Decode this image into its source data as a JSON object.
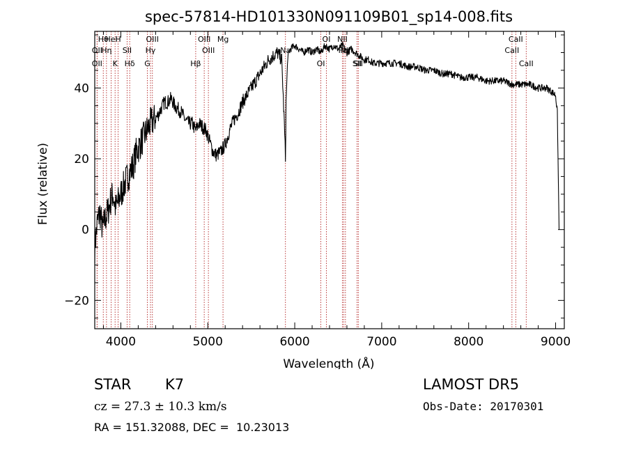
{
  "chart_data": {
    "type": "line",
    "title": "spec-57814-HD101330N091109B01_sp14-008.fits",
    "xlabel": "Wavelength (Å)",
    "ylabel": "Flux (relative)",
    "xlim": [
      3700,
      9100
    ],
    "ylim": [
      -28,
      56
    ],
    "x_ticks": [
      4000,
      5000,
      6000,
      7000,
      8000,
      9000
    ],
    "y_ticks": [
      -20,
      0,
      20,
      40
    ],
    "grid": false,
    "series": [
      {
        "x": [
          3700,
          3730,
          3760,
          3790,
          3820,
          3850,
          3880,
          3910,
          3940,
          3970,
          4000,
          4030,
          4060,
          4100,
          4140,
          4180,
          4220,
          4260,
          4300,
          4340,
          4380,
          4420,
          4460,
          4500,
          4540,
          4580,
          4620,
          4660,
          4700,
          4740,
          4780,
          4820,
          4860,
          4900,
          4940,
          4980,
          5020,
          5060,
          5100,
          5150,
          5200,
          5250,
          5300,
          5350,
          5400,
          5450,
          5500,
          5550,
          5600,
          5650,
          5700,
          5750,
          5800,
          5850,
          5880,
          5893,
          5900,
          5920,
          5950,
          6000,
          6050,
          6100,
          6150,
          6200,
          6250,
          6300,
          6350,
          6400,
          6450,
          6500,
          6550,
          6600,
          6650,
          6700,
          6750,
          6800,
          6850,
          6900,
          6950,
          7000,
          7100,
          7200,
          7300,
          7400,
          7500,
          7600,
          7700,
          7800,
          7900,
          8000,
          8100,
          8200,
          8300,
          8400,
          8500,
          8600,
          8700,
          8800,
          8900,
          8950,
          9000,
          9020,
          9040
        ],
        "y": [
          -5,
          2,
          5,
          0,
          3,
          5,
          8,
          10,
          6,
          8,
          10,
          12,
          14,
          16,
          18,
          22,
          24,
          26,
          28,
          30,
          31,
          32,
          34,
          36,
          36,
          37,
          35,
          34,
          33,
          31,
          30,
          30,
          28,
          30,
          29,
          28,
          25,
          22,
          21,
          22,
          24,
          28,
          31,
          33,
          36,
          38,
          40,
          42,
          44,
          46,
          48,
          49,
          50,
          48,
          30,
          20,
          36,
          49,
          51,
          52,
          51,
          50,
          51,
          50,
          51,
          50,
          52,
          51,
          52,
          51,
          52,
          50,
          51,
          50,
          49,
          48,
          48,
          47,
          47,
          47,
          47,
          47,
          46,
          46,
          45,
          45,
          44,
          44,
          43,
          43,
          43,
          42,
          42,
          42,
          41,
          41,
          41,
          40,
          40,
          39,
          38,
          33,
          0
        ],
        "color": "#000000"
      }
    ],
    "spectral_lines": [
      {
        "label": "Hθ",
        "x": 3798
      },
      {
        "label": "OII",
        "x": 3727
      },
      {
        "label": "OII",
        "x": 3727
      },
      {
        "label": "HeI",
        "x": 3889
      },
      {
        "label": "Hη",
        "x": 3835
      },
      {
        "label": "K",
        "x": 3934
      },
      {
        "label": "H",
        "x": 3969
      },
      {
        "label": "SII",
        "x": 4072
      },
      {
        "label": "Hδ",
        "x": 4102
      },
      {
        "label": "OIII",
        "x": 4363
      },
      {
        "label": "Hγ",
        "x": 4341
      },
      {
        "label": "G",
        "x": 4305
      },
      {
        "label": "OIII",
        "x": 4959
      },
      {
        "label": "OIII",
        "x": 5007
      },
      {
        "label": "Hβ",
        "x": 4861
      },
      {
        "label": "Mg",
        "x": 5175
      },
      {
        "label": "Na",
        "x": 5893
      },
      {
        "label": "OI",
        "x": 6300
      },
      {
        "label": "OI",
        "x": 6364
      },
      {
        "label": "Hα",
        "x": 6563
      },
      {
        "label": "SII",
        "x": 6717
      },
      {
        "label": "NII",
        "x": 6548
      },
      {
        "label": "NII",
        "x": 6583
      },
      {
        "label": "SII",
        "x": 6731
      },
      {
        "label": "CaII",
        "x": 8542
      },
      {
        "label": "CaII",
        "x": 8498
      },
      {
        "label": "CaII",
        "x": 8662
      }
    ]
  },
  "info": {
    "object_type": "STAR",
    "subclass": "K7",
    "redshift": "cz = 27.3 ± 10.3 km/s",
    "coords": "RA = 151.32088, DEC =  10.23013",
    "survey": "LAMOST DR5",
    "obs_date": "Obs-Date: 20170301"
  }
}
